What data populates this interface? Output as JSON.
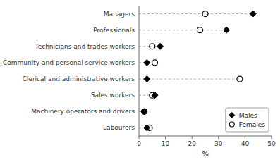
{
  "chart_data": {
    "type": "dot",
    "orientation": "horizontal",
    "categories": [
      "Managers",
      "Professionals",
      "Technicians and trades workers",
      "Community and personal service workers",
      "Clerical and administrative workers",
      "Sales workers",
      "Machinery operators and drivers",
      "Labourers"
    ],
    "series": [
      {
        "name": "Males",
        "color": "#000000",
        "marker": "diamond",
        "values": [
          43,
          33,
          8,
          3,
          3,
          6,
          2,
          3
        ]
      },
      {
        "name": "Females",
        "color": "#000000",
        "marker": "open-circle",
        "values": [
          25,
          23,
          5,
          6,
          38,
          5,
          2,
          4
        ]
      }
    ],
    "xlabel": "%",
    "xlim": [
      0,
      50
    ],
    "xticks": [
      0,
      10,
      20,
      30,
      40,
      50
    ],
    "legend": "lower right"
  }
}
